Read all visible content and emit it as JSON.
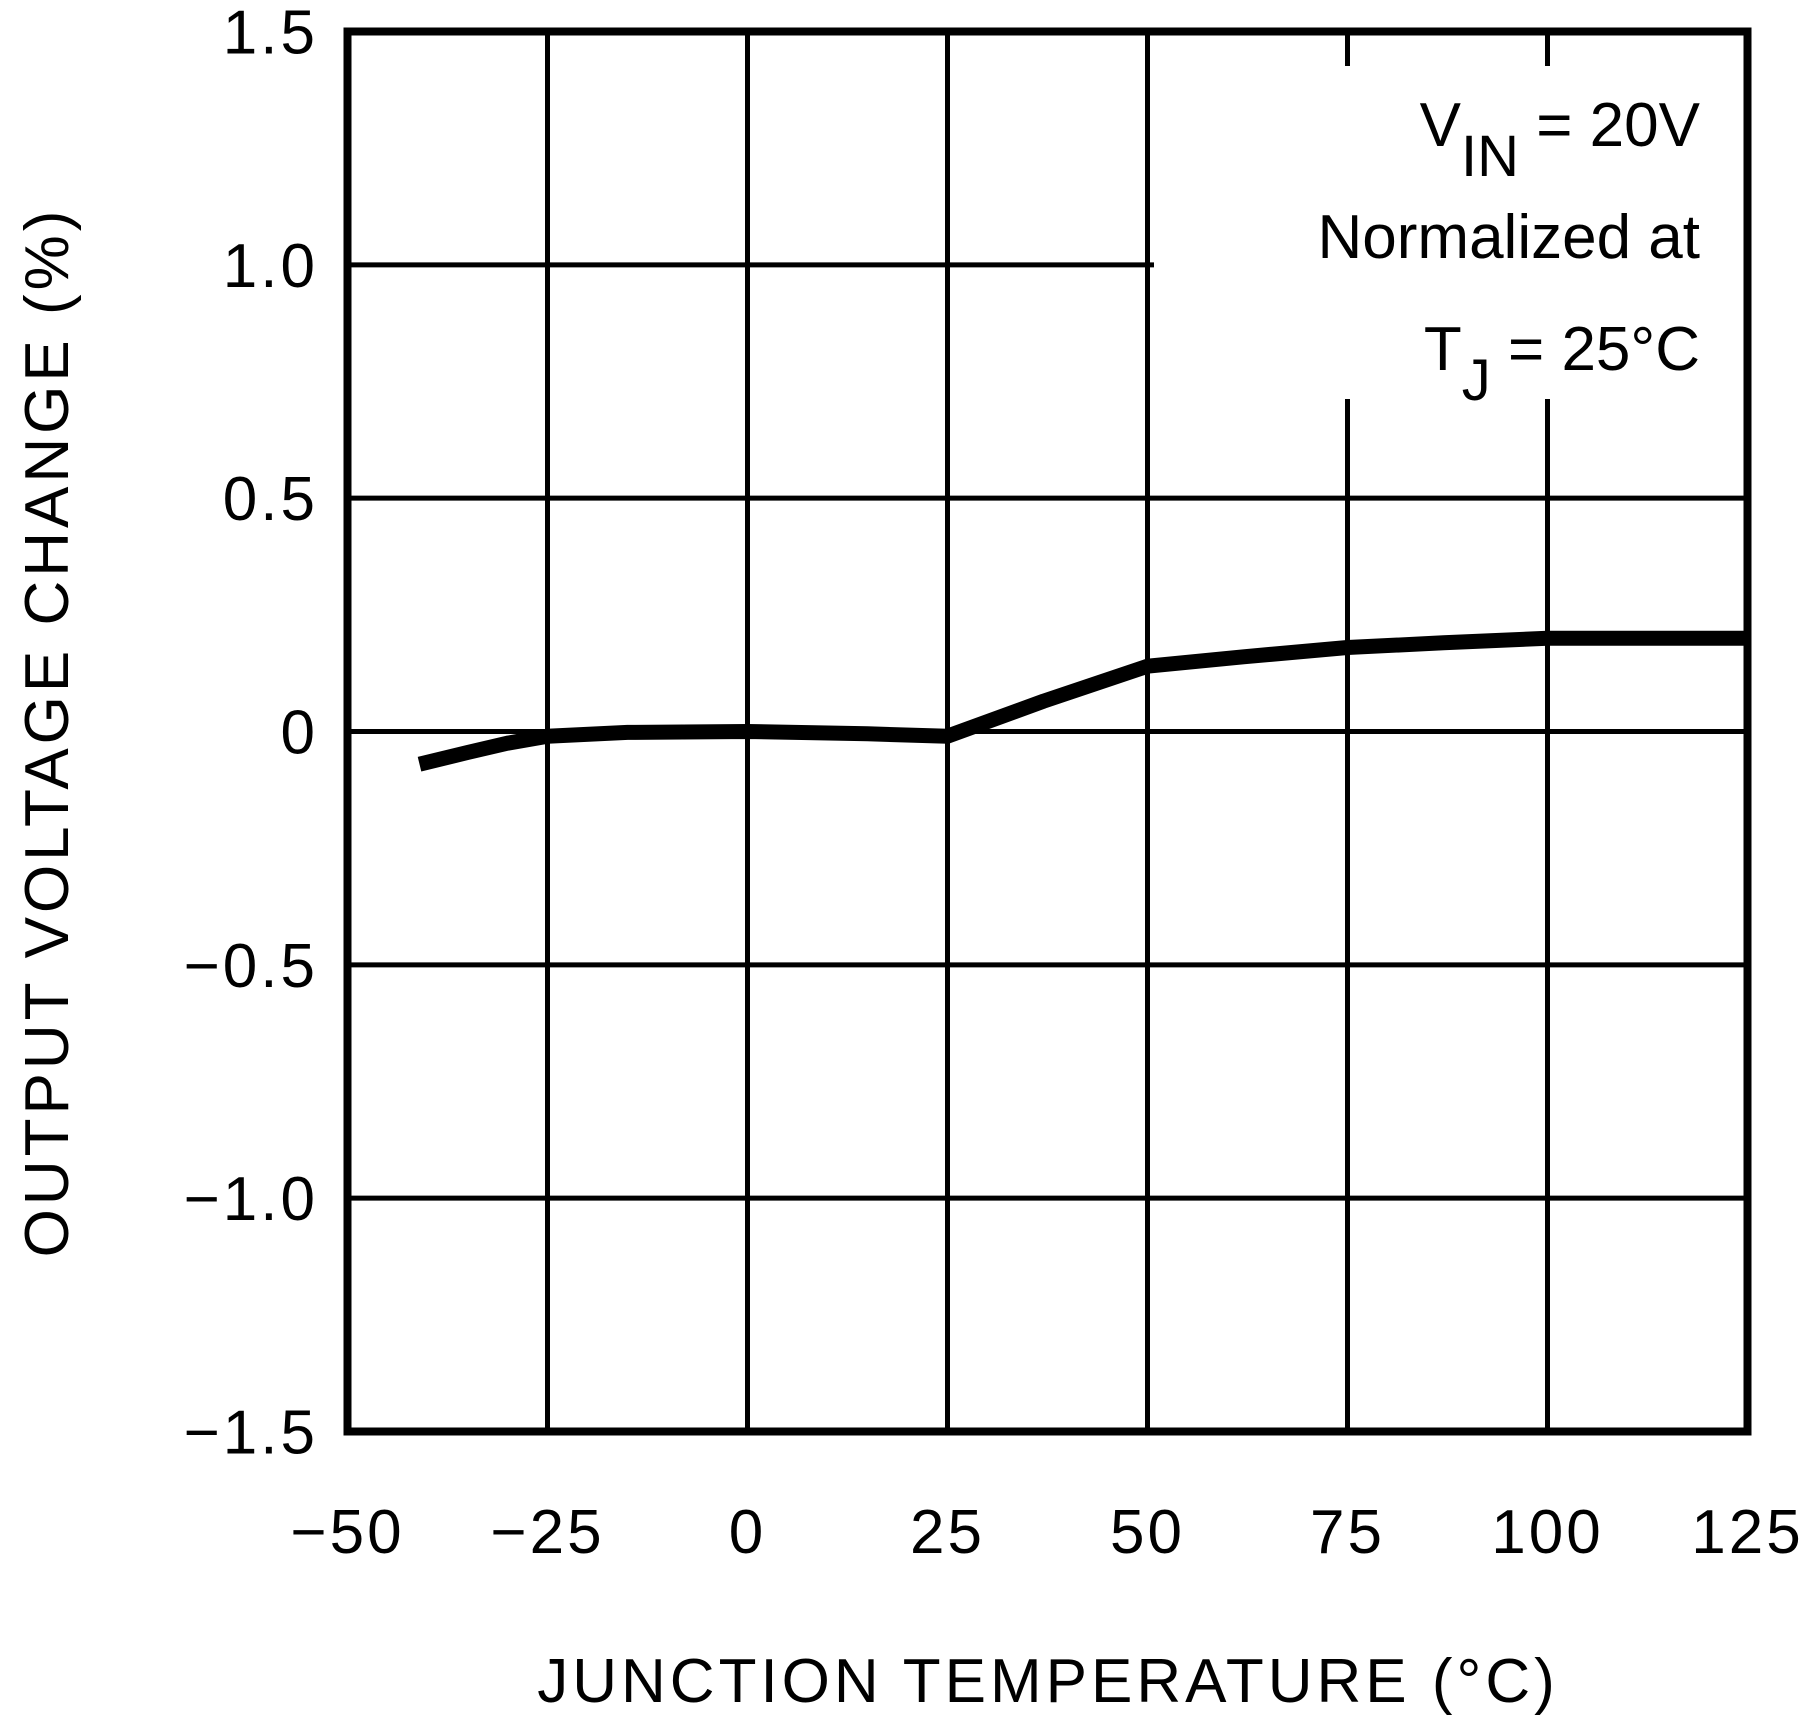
{
  "chart_data": {
    "type": "line",
    "title": "",
    "xlabel": "JUNCTION TEMPERATURE (°C)",
    "ylabel": "OUTPUT VOLTAGE CHANGE (%)",
    "xlim": [
      -50,
      125
    ],
    "ylim": [
      -1.5,
      1.5
    ],
    "x_ticks": [
      -50,
      -25,
      0,
      25,
      50,
      75,
      100,
      125
    ],
    "x_tick_labels": [
      "-50",
      "-25",
      "0",
      "25",
      "50",
      "75",
      "100",
      "125"
    ],
    "y_ticks": [
      1.5,
      1.0,
      0.5,
      0,
      -0.5,
      -1.0,
      -1.5
    ],
    "y_tick_labels": [
      "1.5",
      "1.0",
      "0.5",
      "0",
      "-0.5",
      "-1.0",
      "-1.5"
    ],
    "grid": true,
    "legend": null,
    "annotation": {
      "lines": [
        {
          "main": "V",
          "sub": "IN",
          "rest": " = 20V"
        },
        {
          "main": "Normalized at",
          "sub": "",
          "rest": ""
        },
        {
          "main": "T",
          "sub": "J",
          "rest": " = 25°C"
        }
      ],
      "position": "top-right"
    },
    "series": [
      {
        "name": "Output Voltage Change",
        "color": "#000000",
        "x": [
          -41,
          -35,
          -30,
          -25,
          -15,
          0,
          15,
          25,
          37,
          50,
          62,
          75,
          87,
          100,
          112,
          125
        ],
        "y": [
          -0.07,
          -0.045,
          -0.025,
          -0.01,
          -0.002,
          0.0,
          -0.005,
          -0.01,
          0.065,
          0.14,
          0.16,
          0.18,
          0.19,
          0.2,
          0.2,
          0.2
        ]
      }
    ]
  },
  "labels": {
    "x_axis_title": "JUNCTION TEMPERATURE (°C)",
    "y_axis_title": "OUTPUT VOLTAGE CHANGE (%)",
    "annotation_line1_main": "V",
    "annotation_line1_sub": "IN",
    "annotation_line1_rest": " = 20V",
    "annotation_line2": "Normalized at",
    "annotation_line3_main": "T",
    "annotation_line3_sub": "J",
    "annotation_line3_rest": " = 25°C"
  }
}
